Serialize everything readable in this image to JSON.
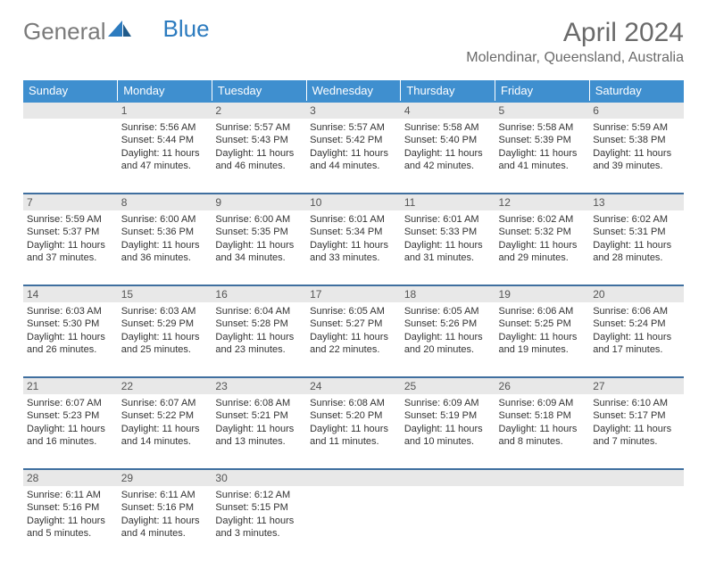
{
  "logo": {
    "text_general": "General",
    "text_blue": "Blue"
  },
  "title": "April 2024",
  "location": "Molendinar, Queensland, Australia",
  "colors": {
    "header_bg": "#3f8fcf",
    "header_text": "#ffffff",
    "daynum_bg": "#e8e8e8",
    "row_border": "#3f6f9f",
    "body_text": "#333333",
    "muted_text": "#6a6a6a",
    "logo_blue": "#2c7bbf"
  },
  "weekdays": [
    "Sunday",
    "Monday",
    "Tuesday",
    "Wednesday",
    "Thursday",
    "Friday",
    "Saturday"
  ],
  "weeks": [
    {
      "nums": [
        "",
        "1",
        "2",
        "3",
        "4",
        "5",
        "6"
      ],
      "cells": [
        {
          "empty": true
        },
        {
          "sunrise": "Sunrise: 5:56 AM",
          "sunset": "Sunset: 5:44 PM",
          "daylight": "Daylight: 11 hours and 47 minutes."
        },
        {
          "sunrise": "Sunrise: 5:57 AM",
          "sunset": "Sunset: 5:43 PM",
          "daylight": "Daylight: 11 hours and 46 minutes."
        },
        {
          "sunrise": "Sunrise: 5:57 AM",
          "sunset": "Sunset: 5:42 PM",
          "daylight": "Daylight: 11 hours and 44 minutes."
        },
        {
          "sunrise": "Sunrise: 5:58 AM",
          "sunset": "Sunset: 5:40 PM",
          "daylight": "Daylight: 11 hours and 42 minutes."
        },
        {
          "sunrise": "Sunrise: 5:58 AM",
          "sunset": "Sunset: 5:39 PM",
          "daylight": "Daylight: 11 hours and 41 minutes."
        },
        {
          "sunrise": "Sunrise: 5:59 AM",
          "sunset": "Sunset: 5:38 PM",
          "daylight": "Daylight: 11 hours and 39 minutes."
        }
      ]
    },
    {
      "nums": [
        "7",
        "8",
        "9",
        "10",
        "11",
        "12",
        "13"
      ],
      "cells": [
        {
          "sunrise": "Sunrise: 5:59 AM",
          "sunset": "Sunset: 5:37 PM",
          "daylight": "Daylight: 11 hours and 37 minutes."
        },
        {
          "sunrise": "Sunrise: 6:00 AM",
          "sunset": "Sunset: 5:36 PM",
          "daylight": "Daylight: 11 hours and 36 minutes."
        },
        {
          "sunrise": "Sunrise: 6:00 AM",
          "sunset": "Sunset: 5:35 PM",
          "daylight": "Daylight: 11 hours and 34 minutes."
        },
        {
          "sunrise": "Sunrise: 6:01 AM",
          "sunset": "Sunset: 5:34 PM",
          "daylight": "Daylight: 11 hours and 33 minutes."
        },
        {
          "sunrise": "Sunrise: 6:01 AM",
          "sunset": "Sunset: 5:33 PM",
          "daylight": "Daylight: 11 hours and 31 minutes."
        },
        {
          "sunrise": "Sunrise: 6:02 AM",
          "sunset": "Sunset: 5:32 PM",
          "daylight": "Daylight: 11 hours and 29 minutes."
        },
        {
          "sunrise": "Sunrise: 6:02 AM",
          "sunset": "Sunset: 5:31 PM",
          "daylight": "Daylight: 11 hours and 28 minutes."
        }
      ]
    },
    {
      "nums": [
        "14",
        "15",
        "16",
        "17",
        "18",
        "19",
        "20"
      ],
      "cells": [
        {
          "sunrise": "Sunrise: 6:03 AM",
          "sunset": "Sunset: 5:30 PM",
          "daylight": "Daylight: 11 hours and 26 minutes."
        },
        {
          "sunrise": "Sunrise: 6:03 AM",
          "sunset": "Sunset: 5:29 PM",
          "daylight": "Daylight: 11 hours and 25 minutes."
        },
        {
          "sunrise": "Sunrise: 6:04 AM",
          "sunset": "Sunset: 5:28 PM",
          "daylight": "Daylight: 11 hours and 23 minutes."
        },
        {
          "sunrise": "Sunrise: 6:05 AM",
          "sunset": "Sunset: 5:27 PM",
          "daylight": "Daylight: 11 hours and 22 minutes."
        },
        {
          "sunrise": "Sunrise: 6:05 AM",
          "sunset": "Sunset: 5:26 PM",
          "daylight": "Daylight: 11 hours and 20 minutes."
        },
        {
          "sunrise": "Sunrise: 6:06 AM",
          "sunset": "Sunset: 5:25 PM",
          "daylight": "Daylight: 11 hours and 19 minutes."
        },
        {
          "sunrise": "Sunrise: 6:06 AM",
          "sunset": "Sunset: 5:24 PM",
          "daylight": "Daylight: 11 hours and 17 minutes."
        }
      ]
    },
    {
      "nums": [
        "21",
        "22",
        "23",
        "24",
        "25",
        "26",
        "27"
      ],
      "cells": [
        {
          "sunrise": "Sunrise: 6:07 AM",
          "sunset": "Sunset: 5:23 PM",
          "daylight": "Daylight: 11 hours and 16 minutes."
        },
        {
          "sunrise": "Sunrise: 6:07 AM",
          "sunset": "Sunset: 5:22 PM",
          "daylight": "Daylight: 11 hours and 14 minutes."
        },
        {
          "sunrise": "Sunrise: 6:08 AM",
          "sunset": "Sunset: 5:21 PM",
          "daylight": "Daylight: 11 hours and 13 minutes."
        },
        {
          "sunrise": "Sunrise: 6:08 AM",
          "sunset": "Sunset: 5:20 PM",
          "daylight": "Daylight: 11 hours and 11 minutes."
        },
        {
          "sunrise": "Sunrise: 6:09 AM",
          "sunset": "Sunset: 5:19 PM",
          "daylight": "Daylight: 11 hours and 10 minutes."
        },
        {
          "sunrise": "Sunrise: 6:09 AM",
          "sunset": "Sunset: 5:18 PM",
          "daylight": "Daylight: 11 hours and 8 minutes."
        },
        {
          "sunrise": "Sunrise: 6:10 AM",
          "sunset": "Sunset: 5:17 PM",
          "daylight": "Daylight: 11 hours and 7 minutes."
        }
      ]
    },
    {
      "nums": [
        "28",
        "29",
        "30",
        "",
        "",
        "",
        ""
      ],
      "cells": [
        {
          "sunrise": "Sunrise: 6:11 AM",
          "sunset": "Sunset: 5:16 PM",
          "daylight": "Daylight: 11 hours and 5 minutes."
        },
        {
          "sunrise": "Sunrise: 6:11 AM",
          "sunset": "Sunset: 5:16 PM",
          "daylight": "Daylight: 11 hours and 4 minutes."
        },
        {
          "sunrise": "Sunrise: 6:12 AM",
          "sunset": "Sunset: 5:15 PM",
          "daylight": "Daylight: 11 hours and 3 minutes."
        },
        {
          "empty": true
        },
        {
          "empty": true
        },
        {
          "empty": true
        },
        {
          "empty": true
        }
      ]
    }
  ]
}
